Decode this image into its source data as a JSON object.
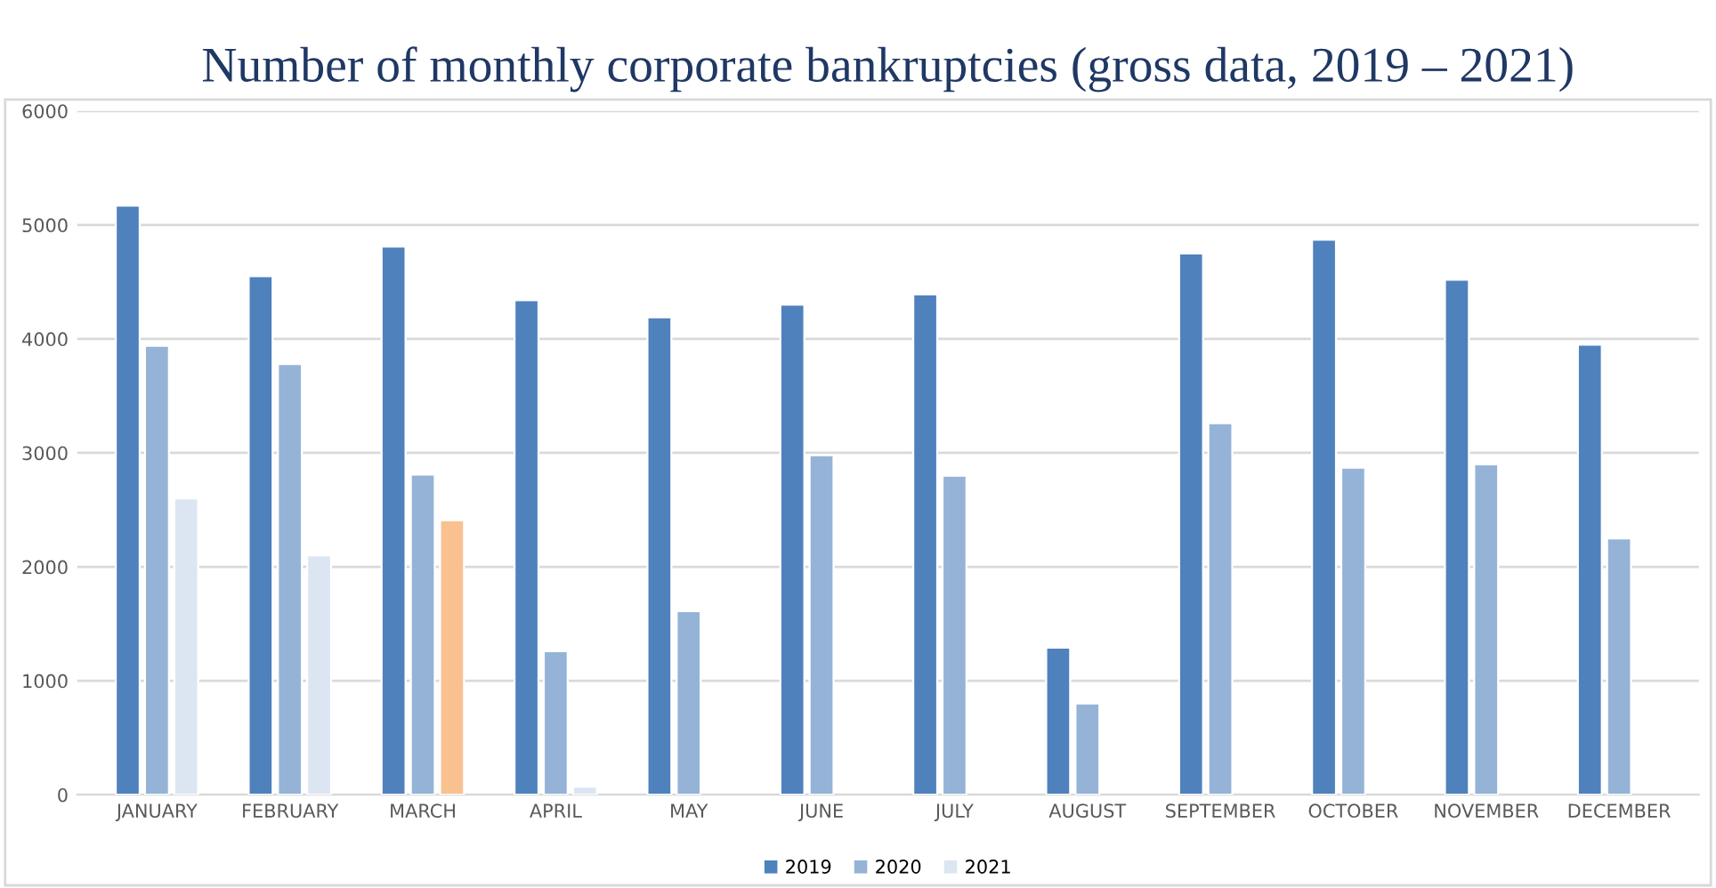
{
  "chart_data": {
    "type": "bar",
    "title": "Number of monthly corporate bankruptcies (gross data, 2019 – 2021)",
    "categories": [
      "JANUARY",
      "FEBRUARY",
      "MARCH",
      "APRIL",
      "MAY",
      "JUNE",
      "JULY",
      "AUGUST",
      "SEPTEMBER",
      "OCTOBER",
      "NOVEMBER",
      "DECEMBER"
    ],
    "series": [
      {
        "name": "2019",
        "color": "#4f81bd",
        "values": [
          5170,
          4550,
          4810,
          4340,
          4190,
          4300,
          4390,
          1290,
          4750,
          4870,
          4520,
          3950
        ]
      },
      {
        "name": "2020",
        "color": "#95b3d7",
        "values": [
          3940,
          3780,
          2810,
          1260,
          1610,
          2980,
          2800,
          800,
          3260,
          2870,
          2900,
          2250
        ]
      },
      {
        "name": "2021",
        "color": "#dce6f2",
        "colors": [
          "#dce6f2",
          "#dce6f2",
          "#f9c090",
          "#dce6f2",
          null,
          null,
          null,
          null,
          null,
          null,
          null,
          null
        ],
        "values": [
          2600,
          2100,
          2410,
          70,
          null,
          null,
          null,
          null,
          null,
          null,
          null,
          null
        ]
      }
    ],
    "ylim": [
      0,
      6000
    ],
    "yticks": [
      0,
      1000,
      2000,
      3000,
      4000,
      5000,
      6000
    ],
    "grid": "y",
    "legend": "bottom"
  }
}
